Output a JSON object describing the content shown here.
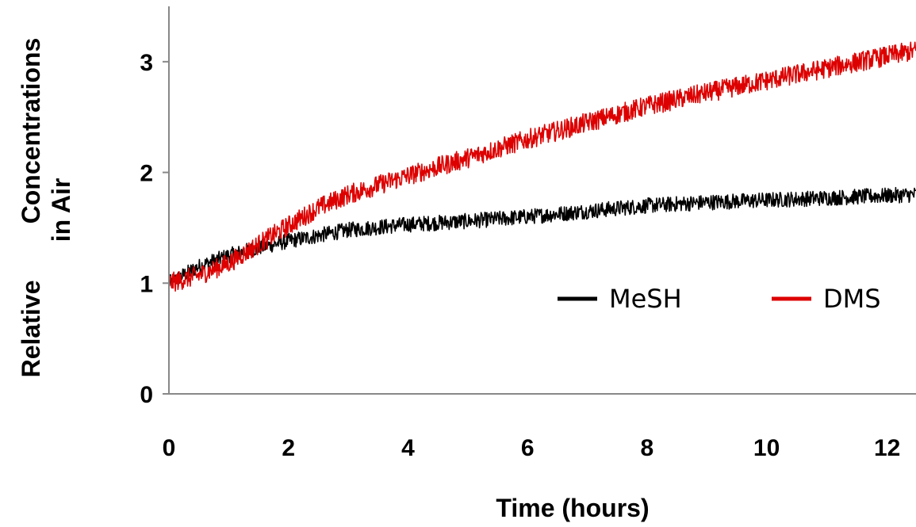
{
  "chart_data": {
    "type": "line",
    "title": "",
    "xlabel": "Time (hours)",
    "ylabel_lines": [
      "Relative",
      "Concentrations",
      "in Air"
    ],
    "xlim": [
      0,
      12.5
    ],
    "ylim": [
      0,
      3.5
    ],
    "xticks": [
      0,
      2,
      4,
      6,
      8,
      10,
      12
    ],
    "yticks": [
      0,
      1,
      2,
      3
    ],
    "grid": false,
    "legend_position": "center-right",
    "series": [
      {
        "name": "MeSH",
        "color": "#000000",
        "x": [
          0,
          0.5,
          1,
          1.5,
          2,
          2.5,
          3,
          4,
          5,
          6,
          7,
          8,
          9,
          10,
          11,
          12,
          12.5
        ],
        "y": [
          1.0,
          1.15,
          1.25,
          1.32,
          1.38,
          1.43,
          1.48,
          1.53,
          1.56,
          1.6,
          1.65,
          1.7,
          1.73,
          1.75,
          1.77,
          1.79,
          1.8
        ],
        "noise": 0.07
      },
      {
        "name": "DMS",
        "color": "#dd0000",
        "x": [
          0,
          0.5,
          1,
          1.5,
          2,
          2.5,
          3,
          4,
          5,
          6,
          7,
          8,
          9,
          10,
          11,
          12,
          12.5
        ],
        "y": [
          1.0,
          1.07,
          1.18,
          1.35,
          1.52,
          1.68,
          1.8,
          1.97,
          2.13,
          2.3,
          2.45,
          2.6,
          2.72,
          2.83,
          2.94,
          3.05,
          3.1
        ],
        "noise": 0.09
      }
    ]
  }
}
